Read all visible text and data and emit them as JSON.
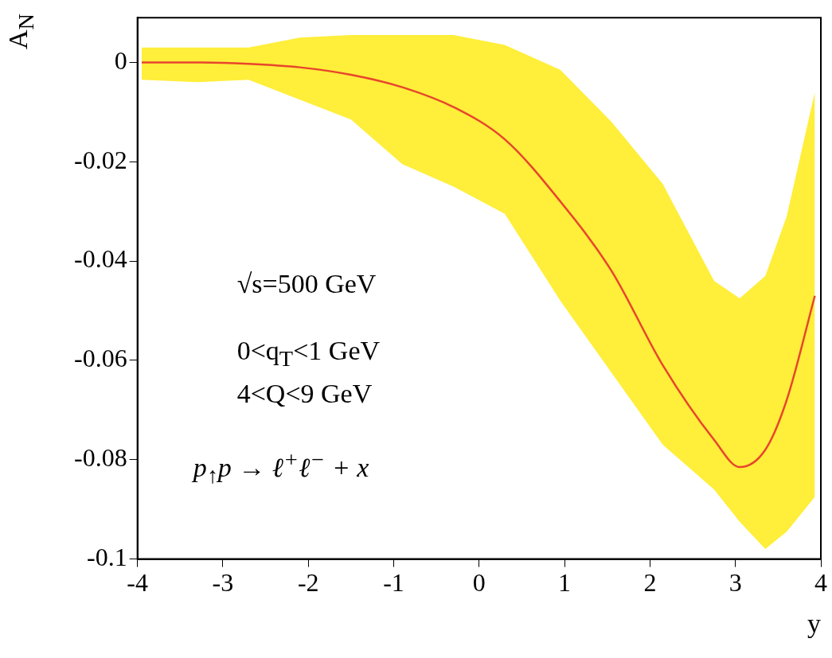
{
  "chart_data": {
    "type": "line",
    "xlabel": "y",
    "ylabel": "A$_{N}$",
    "x": [
      -3.95,
      -3.3,
      -2.7,
      -2.1,
      -1.5,
      -0.9,
      -0.3,
      0.3,
      0.95,
      1.55,
      2.15,
      2.75,
      3.05,
      3.35,
      3.6,
      3.93
    ],
    "series": [
      {
        "color": "#e8452c",
        "values": [
          0,
          0,
          -0.0003,
          -0.001,
          -0.0025,
          -0.005,
          -0.009,
          -0.0155,
          -0.028,
          -0.042,
          -0.061,
          -0.076,
          -0.0815,
          -0.078,
          -0.068,
          -0.047
        ],
        "lower": [
          -0.0035,
          -0.004,
          -0.0035,
          -0.0075,
          -0.0115,
          -0.0205,
          -0.025,
          -0.0305,
          -0.048,
          -0.0625,
          -0.077,
          -0.086,
          -0.0925,
          -0.098,
          -0.0945,
          -0.0875
        ],
        "upper": [
          0.003,
          0.003,
          0.003,
          0.005,
          0.0055,
          0.0055,
          0.0055,
          0.0035,
          -0.0015,
          -0.012,
          -0.0245,
          -0.044,
          -0.0475,
          -0.043,
          -0.031,
          -0.006
        ]
      }
    ],
    "xlim": [
      -4,
      4
    ],
    "xticks": [
      -4,
      -3,
      -2,
      -1,
      0,
      1,
      2,
      3,
      4
    ],
    "ylim": [
      -0.1,
      0.009
    ],
    "yticks": [
      -0.1,
      -0.08,
      -0.06,
      -0.04,
      -0.02,
      0
    ],
    "grid": false,
    "legend": false,
    "marker": "none",
    "line_style": "solid",
    "annotations": [
      "√s=500 GeV",
      "0<q$_{T}$<1 GeV",
      "4<Q<9 GeV",
      "p$_{↑}$p → ℓ$^{+}$ℓ$^{−}$ + x"
    ]
  }
}
